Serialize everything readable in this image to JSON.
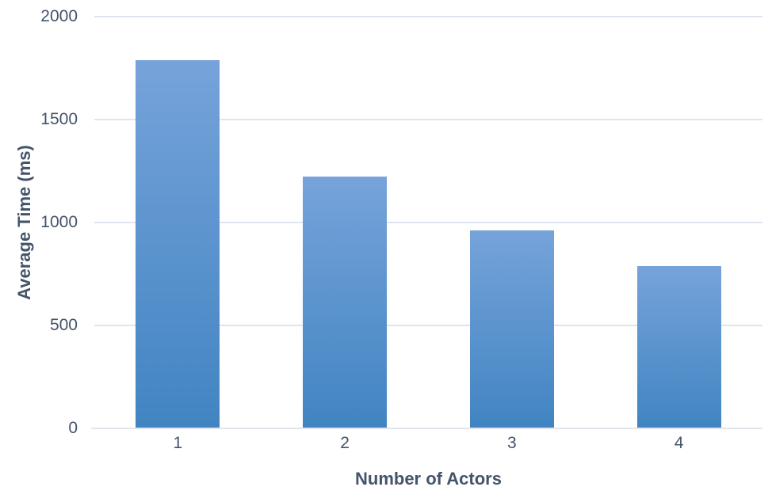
{
  "chart_data": {
    "type": "bar",
    "title": "",
    "categories": [
      "1",
      "2",
      "3",
      "4"
    ],
    "values": [
      1790,
      1225,
      960,
      790
    ],
    "xlabel": "Number of Actors",
    "ylabel": "Average Time (ms)",
    "ylim": [
      0,
      2000
    ],
    "yticks": [
      0,
      500,
      1000,
      1500,
      2000
    ],
    "grid": "horizontal",
    "legend": "none",
    "colors": {
      "bar_gradient_top": "#76a3da",
      "bar_gradient_bottom": "#4184c2",
      "axis_text": "#44546a",
      "gridline": "#dfe5ee",
      "axis_line": "#e2e6ec",
      "background": "#ffffff"
    }
  }
}
